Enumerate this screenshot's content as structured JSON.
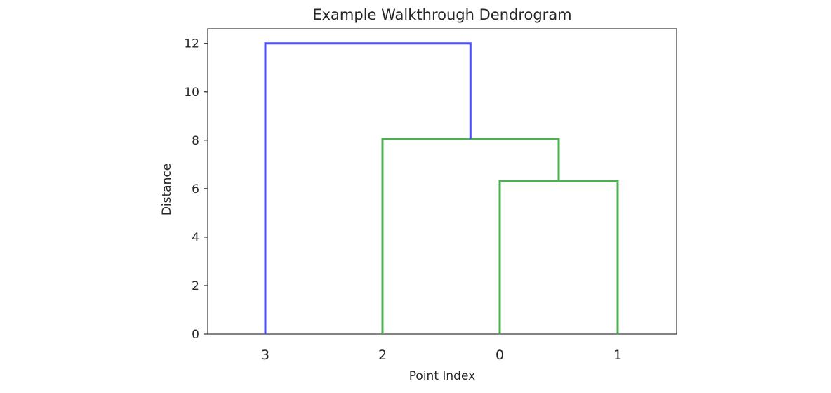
{
  "chart_data": {
    "type": "dendrogram",
    "title": "Example Walkthrough Dendrogram",
    "xlabel": "Point Index",
    "ylabel": "Distance",
    "ylim": [
      0,
      12.6
    ],
    "yticks": [
      0,
      2,
      4,
      6,
      8,
      10,
      12
    ],
    "leaves": [
      "3",
      "2",
      "0",
      "1"
    ],
    "links": [
      {
        "left": [
          "1",
          0
        ],
        "right": [
          "0",
          0
        ],
        "height": 6.3,
        "color": "#4caf50",
        "merged_at": 2.5
      },
      {
        "left": [
          "2",
          0
        ],
        "right": [
          "link",
          6.3
        ],
        "height": 8.05,
        "color": "#4caf50",
        "merged_at": 1.75
      },
      {
        "left": [
          "3",
          0
        ],
        "right": [
          "link",
          8.05
        ],
        "height": 12.0,
        "color": "#4e4ef5",
        "merged_at": 0.875
      }
    ],
    "segments": [
      {
        "name": "link-0-1",
        "color": "#4caf50",
        "points": [
          [
            2,
            0
          ],
          [
            2,
            6.3
          ],
          [
            3,
            6.3
          ],
          [
            3,
            0
          ]
        ]
      },
      {
        "name": "link-2-01",
        "color": "#4caf50",
        "points": [
          [
            1,
            0
          ],
          [
            1,
            8.05
          ],
          [
            2.5,
            8.05
          ],
          [
            2.5,
            6.3
          ]
        ]
      },
      {
        "name": "link-3-201",
        "color": "#4e4ef5",
        "points": [
          [
            0,
            0
          ],
          [
            0,
            12.0
          ],
          [
            1.75,
            12.0
          ],
          [
            1.75,
            8.05
          ]
        ]
      }
    ],
    "grid": false
  }
}
